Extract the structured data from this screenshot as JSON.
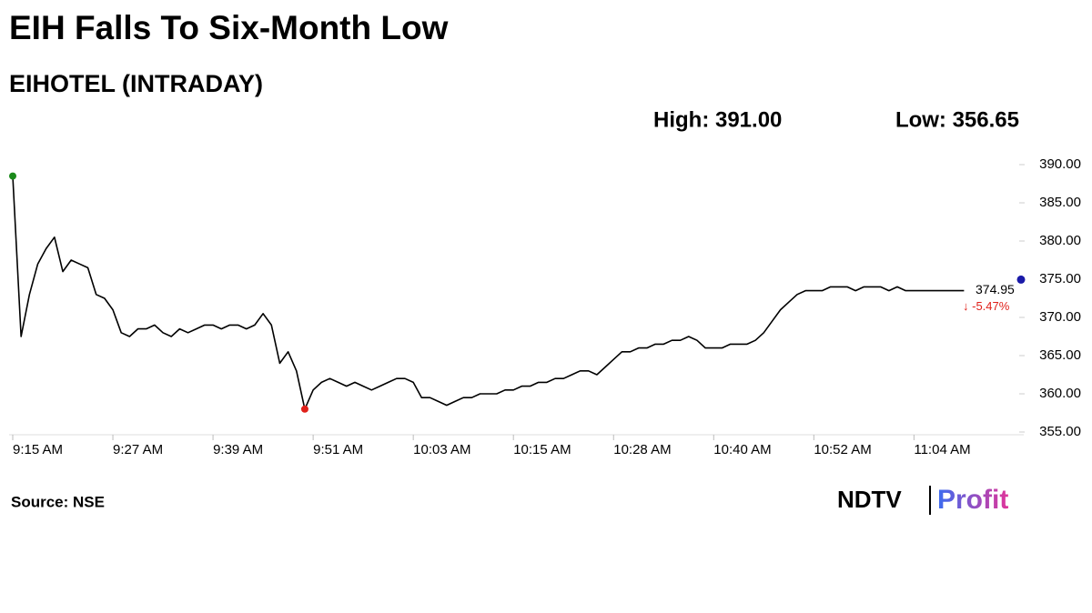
{
  "chart_data": {
    "type": "line",
    "title": "EIH Falls To Six-Month Low",
    "subtitle": "EIHOTEL (INTRADAY)",
    "high_label": "High: 391.00",
    "low_label": "Low: 356.65",
    "last_price": 374.95,
    "change_label": "↓ -5.47%",
    "source": "Source: NSE",
    "logo": {
      "left": "NDTV",
      "right": "Profit"
    },
    "color": "#000000",
    "categories": [
      "9:15 AM",
      null,
      null,
      null,
      null,
      null,
      null,
      null,
      null,
      null,
      null,
      null,
      "9:27 AM",
      null,
      null,
      null,
      null,
      null,
      null,
      null,
      null,
      null,
      null,
      null,
      "9:39 AM",
      null,
      null,
      null,
      null,
      null,
      null,
      null,
      null,
      null,
      null,
      null,
      "9:51 AM",
      null,
      null,
      null,
      null,
      null,
      null,
      null,
      null,
      null,
      null,
      null,
      "10:03 AM",
      null,
      null,
      null,
      null,
      null,
      null,
      null,
      null,
      null,
      null,
      null,
      "10:15 AM",
      null,
      null,
      null,
      null,
      null,
      null,
      null,
      null,
      null,
      null,
      null,
      "10:28 AM",
      null,
      null,
      null,
      null,
      null,
      null,
      null,
      null,
      null,
      null,
      null,
      "10:40 AM",
      null,
      null,
      null,
      null,
      null,
      null,
      null,
      null,
      null,
      null,
      null,
      "10:52 AM",
      null,
      null,
      null,
      null,
      null,
      null,
      null,
      null,
      null,
      null,
      null,
      "11:04 AM",
      null,
      null,
      null,
      null,
      null,
      null
    ],
    "values": [
      388.5,
      367.5,
      373,
      377,
      379,
      380.5,
      376,
      377.5,
      377,
      376.5,
      373,
      372.5,
      371,
      368,
      367.5,
      368.5,
      368.5,
      369,
      368,
      367.5,
      368.5,
      368,
      368.5,
      369,
      369,
      368.5,
      369,
      369,
      368.5,
      369,
      370.5,
      369,
      364,
      365.5,
      363,
      358,
      360.5,
      361.5,
      362,
      361.5,
      361,
      361.5,
      361,
      360.5,
      361,
      361.5,
      362,
      362,
      361.5,
      359.5,
      359.5,
      359,
      358.5,
      359,
      359.5,
      359.5,
      360,
      360,
      360,
      360.5,
      360.5,
      361,
      361,
      361.5,
      361.5,
      362,
      362,
      362.5,
      363,
      363,
      362.5,
      363.5,
      364.5,
      365.5,
      365.5,
      366,
      366,
      366.5,
      366.5,
      367,
      367,
      367.5,
      367,
      366,
      366,
      366,
      366.5,
      366.5,
      366.5,
      367,
      368,
      369.5,
      371,
      372,
      373,
      373.5,
      373.5,
      373.5,
      374,
      374,
      374,
      373.5,
      374,
      374,
      374,
      373.5,
      374,
      373.5,
      373.5,
      373.5,
      373.5,
      373.5,
      373.5,
      373.5,
      373.5
    ],
    "start_marker_color": "#1a8a1a",
    "low_marker_color": "#e0201a",
    "last_marker_color": "#1a1aa8",
    "ylim": [
      355,
      390
    ],
    "yticks": [
      {
        "value": 355,
        "label": "355.00"
      },
      {
        "value": 360,
        "label": "360.00"
      },
      {
        "value": 365,
        "label": "365.00"
      },
      {
        "value": 370,
        "label": "370.00"
      },
      {
        "value": 375,
        "label": "375.00"
      },
      {
        "value": 380,
        "label": "380.00"
      },
      {
        "value": 385,
        "label": "385.00"
      },
      {
        "value": 390,
        "label": "390.00"
      }
    ]
  }
}
